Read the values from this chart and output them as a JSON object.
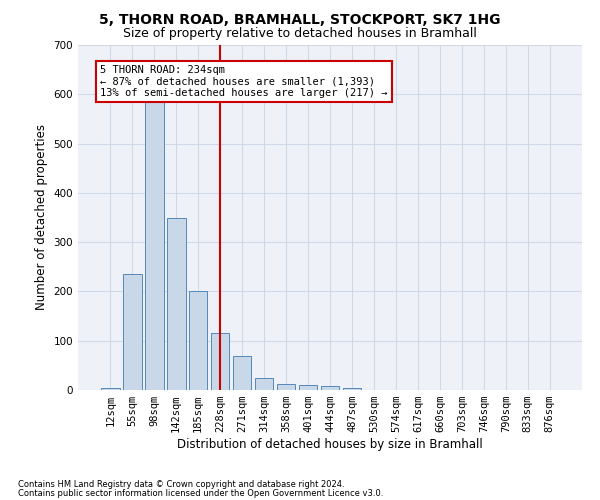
{
  "title": "5, THORN ROAD, BRAMHALL, STOCKPORT, SK7 1HG",
  "subtitle": "Size of property relative to detached houses in Bramhall",
  "xlabel": "Distribution of detached houses by size in Bramhall",
  "ylabel": "Number of detached properties",
  "footnote1": "Contains HM Land Registry data © Crown copyright and database right 2024.",
  "footnote2": "Contains public sector information licensed under the Open Government Licence v3.0.",
  "bin_labels": [
    "12sqm",
    "55sqm",
    "98sqm",
    "142sqm",
    "185sqm",
    "228sqm",
    "271sqm",
    "314sqm",
    "358sqm",
    "401sqm",
    "444sqm",
    "487sqm",
    "530sqm",
    "574sqm",
    "617sqm",
    "660sqm",
    "703sqm",
    "746sqm",
    "790sqm",
    "833sqm",
    "876sqm"
  ],
  "bar_heights": [
    5,
    235,
    590,
    350,
    200,
    115,
    70,
    25,
    12,
    10,
    8,
    5,
    0,
    0,
    0,
    0,
    0,
    0,
    0,
    0,
    0
  ],
  "bar_color": "#c8d8e8",
  "bar_edge_color": "#5588bb",
  "grid_color": "#d0d8e8",
  "background_color": "#eef2f8",
  "vline_x_index": 5,
  "vline_color": "#cc0000",
  "annotation_line1": "5 THORN ROAD: 234sqm",
  "annotation_line2": "← 87% of detached houses are smaller (1,393)",
  "annotation_line3": "13% of semi-detached houses are larger (217) →",
  "annotation_box_color": "#ffffff",
  "annotation_box_edge_color": "#cc0000",
  "ylim": [
    0,
    700
  ],
  "yticks": [
    0,
    100,
    200,
    300,
    400,
    500,
    600,
    700
  ],
  "title_fontsize": 10,
  "subtitle_fontsize": 9,
  "label_fontsize": 8.5,
  "tick_fontsize": 7.5,
  "annot_fontsize": 7.5
}
